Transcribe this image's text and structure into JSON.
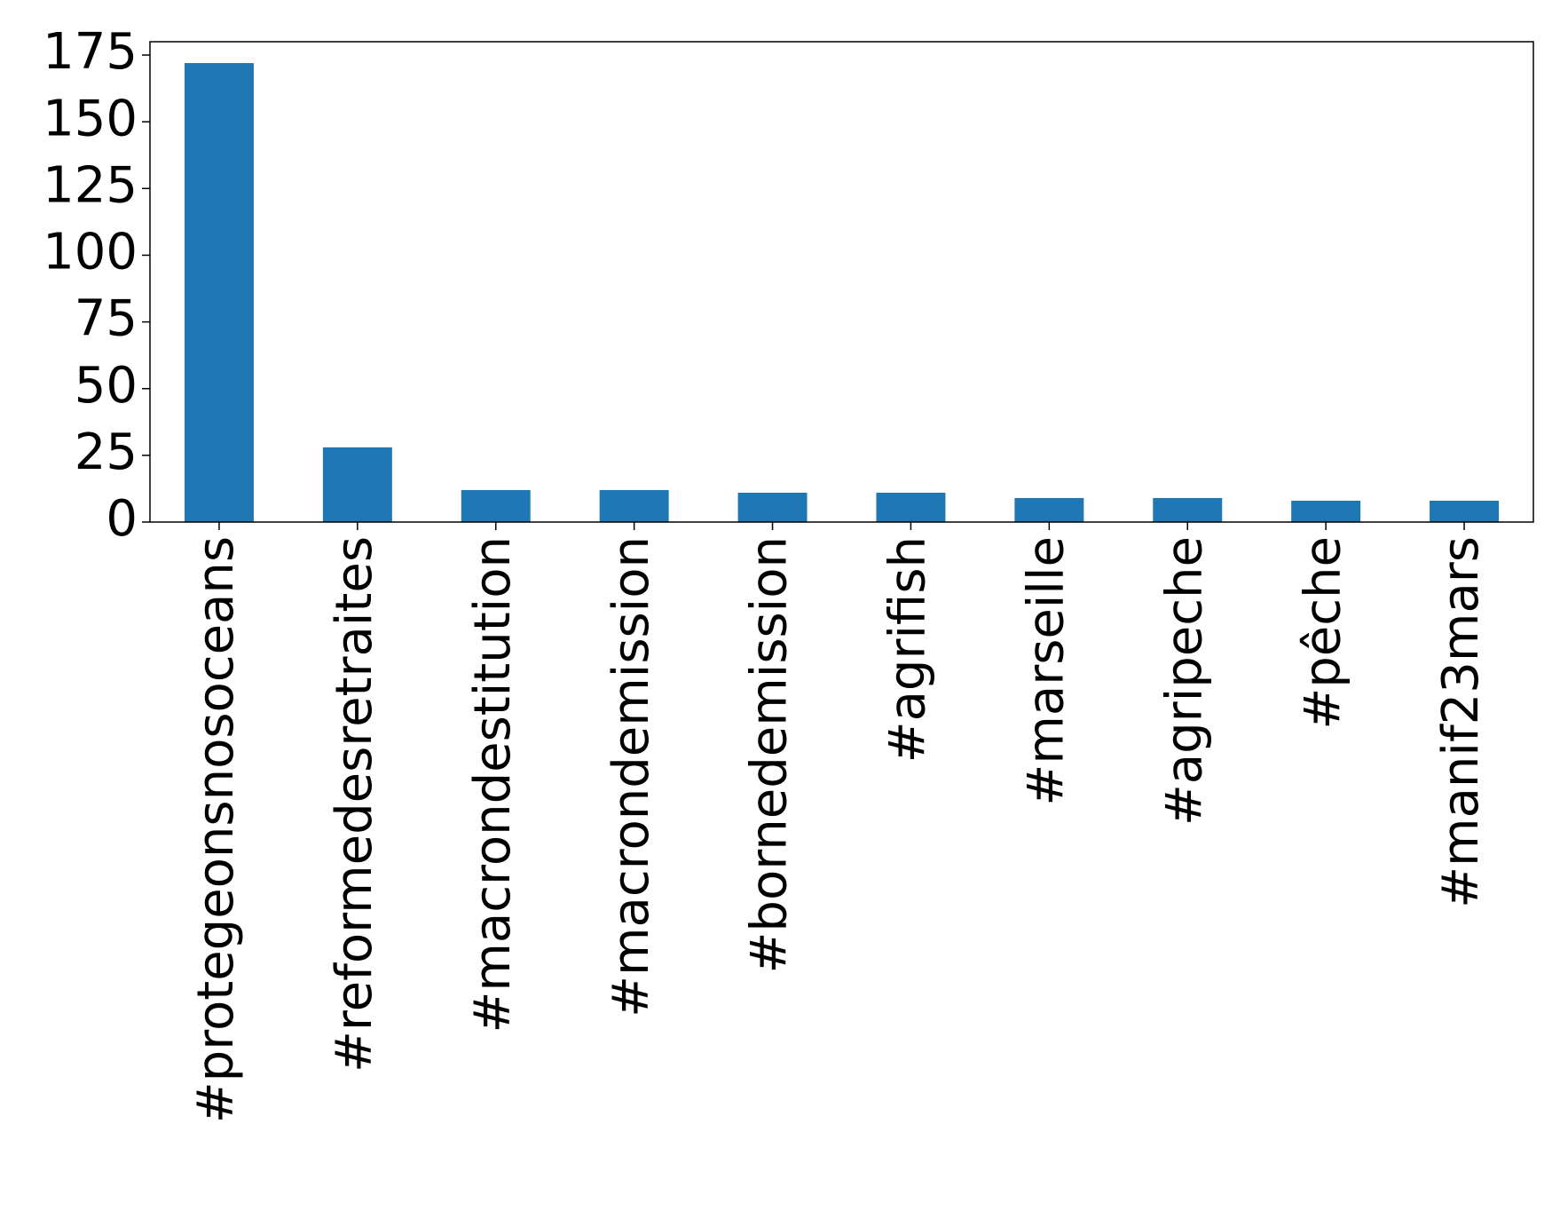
{
  "chart_data": {
    "type": "bar",
    "categories": [
      "#protegeonsnosoceans",
      "#reformedesretraites",
      "#macrondestitution",
      "#macrondemission",
      "#bornedemission",
      "#agrifish",
      "#marseille",
      "#agripeche",
      "#pêche",
      "#manif23mars"
    ],
    "values": [
      172,
      28,
      12,
      12,
      11,
      11,
      9,
      9,
      8,
      8
    ],
    "color": "#1f77b4",
    "ylim": [
      0,
      180
    ],
    "yticks": [
      0,
      25,
      50,
      75,
      100,
      125,
      150,
      175
    ],
    "grid": false
  }
}
